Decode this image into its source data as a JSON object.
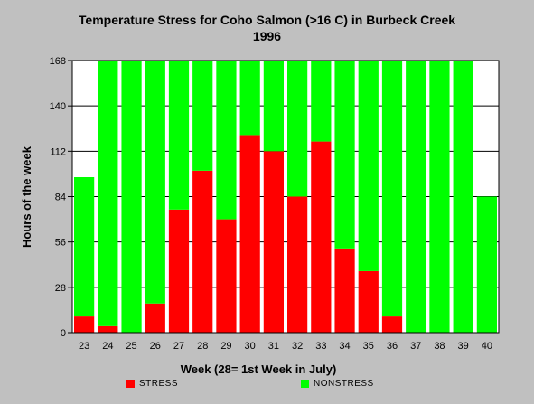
{
  "chart_data": {
    "type": "bar",
    "stacked": true,
    "title": "Temperature Stress for Coho Salmon (>16 C) in Burbeck Creek",
    "subtitle": "1996",
    "xlabel": "Week (28= 1st Week in July)",
    "ylabel": "Hours of the week",
    "ylim": [
      0,
      168
    ],
    "yticks": [
      0,
      28,
      56,
      84,
      112,
      140,
      168
    ],
    "grid": true,
    "legend_position": "bottom",
    "categories": [
      "23",
      "24",
      "25",
      "26",
      "27",
      "28",
      "29",
      "30",
      "31",
      "32",
      "33",
      "34",
      "35",
      "36",
      "37",
      "38",
      "39",
      "40"
    ],
    "series": [
      {
        "name": "STRESS",
        "color": "#ff0000",
        "values": [
          10,
          4,
          0,
          18,
          76,
          100,
          70,
          122,
          112,
          84,
          118,
          52,
          38,
          10,
          0,
          0,
          0,
          0
        ]
      },
      {
        "name": "NONSTRESS",
        "color": "#00ff00",
        "values": [
          86,
          164,
          168,
          150,
          92,
          68,
          98,
          46,
          56,
          84,
          50,
          116,
          130,
          158,
          168,
          168,
          168,
          84
        ]
      }
    ]
  }
}
